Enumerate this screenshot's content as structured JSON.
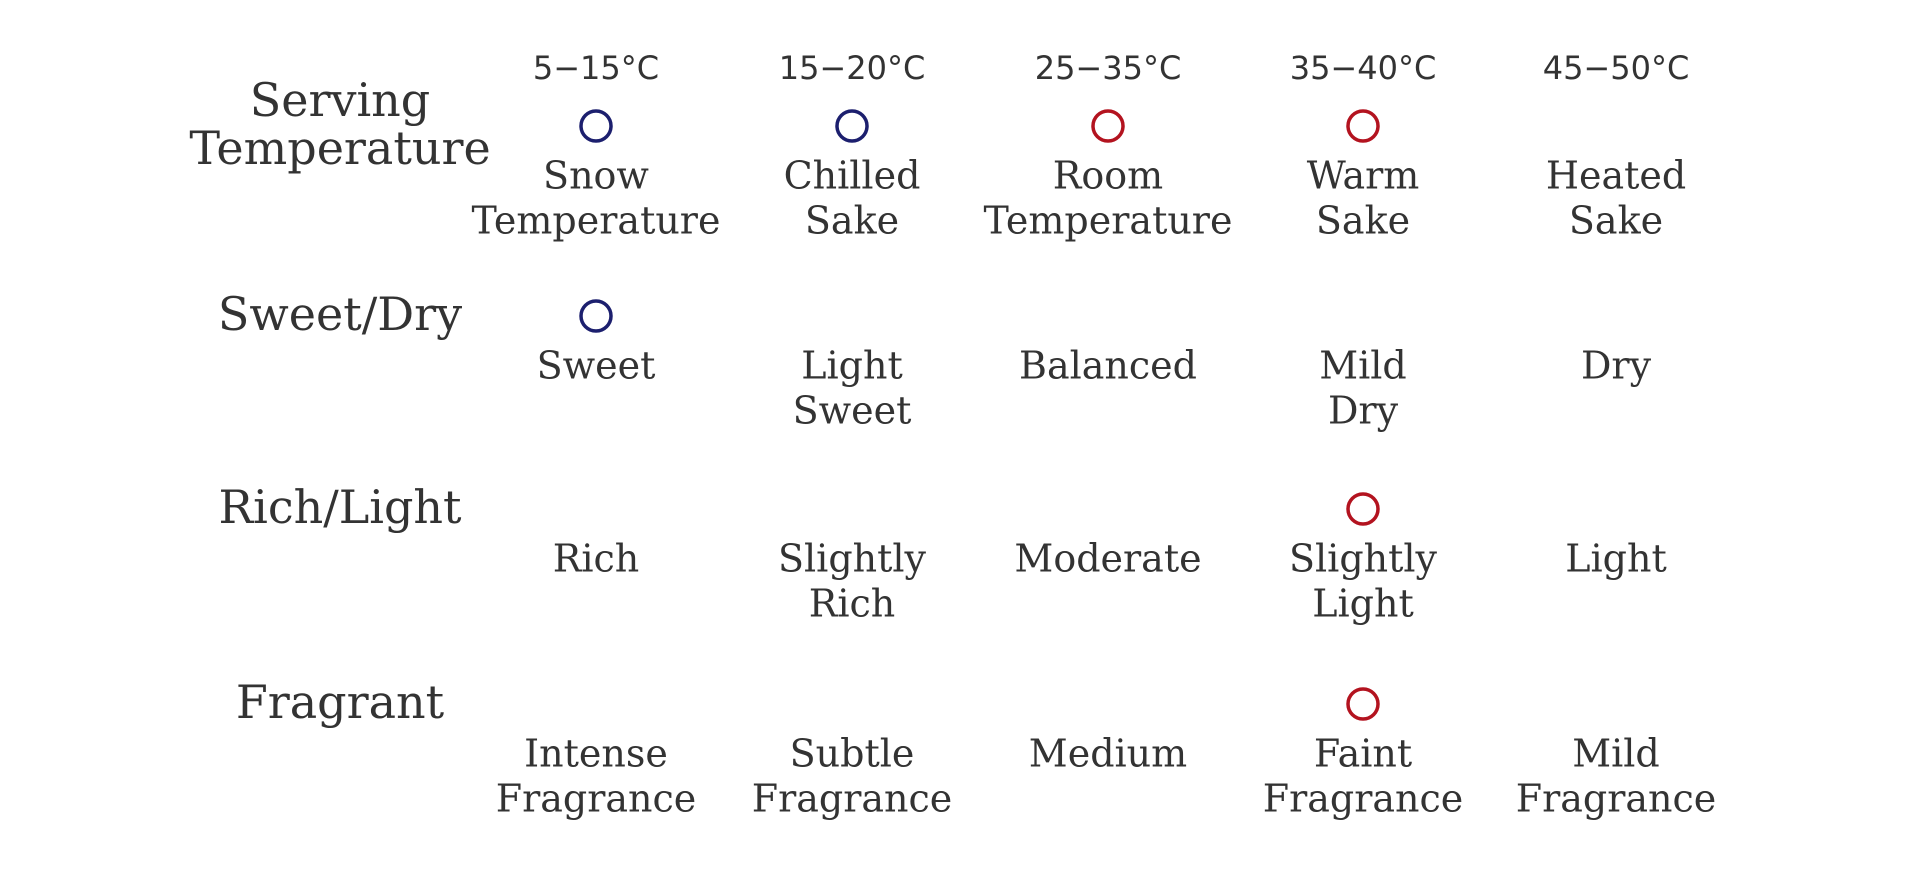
{
  "rows": [
    {
      "label": [
        "Serving",
        "Temperature"
      ],
      "items": [
        {
          "temp": "5−15°C",
          "label": [
            "Snow",
            "Temperature"
          ],
          "marked": true
        },
        {
          "temp": "15−20°C",
          "label": [
            "Chilled",
            "Sake"
          ],
          "marked": true
        },
        {
          "temp": "25−35°C",
          "label": [
            "Room",
            "Temperature"
          ],
          "marked": true
        },
        {
          "temp": "35−40°C",
          "label": [
            "Warm",
            "Sake"
          ],
          "marked": true
        },
        {
          "temp": "45−50°C",
          "label": [
            "Heated",
            "Sake"
          ],
          "marked": false
        }
      ]
    },
    {
      "label": [
        "Sweet/Dry"
      ],
      "items": [
        {
          "label": [
            "Sweet"
          ],
          "marked": true
        },
        {
          "label": [
            "Light",
            "Sweet"
          ],
          "marked": false
        },
        {
          "label": [
            "Balanced"
          ],
          "marked": false
        },
        {
          "label": [
            "Mild",
            "Dry"
          ],
          "marked": false
        },
        {
          "label": [
            "Dry"
          ],
          "marked": false
        }
      ]
    },
    {
      "label": [
        "Rich/Light"
      ],
      "items": [
        {
          "label": [
            "Rich"
          ],
          "marked": false
        },
        {
          "label": [
            "Slightly",
            "Rich"
          ],
          "marked": false
        },
        {
          "label": [
            "Moderate"
          ],
          "marked": false
        },
        {
          "label": [
            "Slightly",
            "Light"
          ],
          "marked": true
        },
        {
          "label": [
            "Light"
          ],
          "marked": false
        }
      ]
    },
    {
      "label": [
        "Fragrant"
      ],
      "items": [
        {
          "label": [
            "Intense",
            "Fragrance"
          ],
          "marked": false
        },
        {
          "label": [
            "Subtle",
            "Fragrance"
          ],
          "marked": false
        },
        {
          "label": [
            "Medium"
          ],
          "marked": false
        },
        {
          "label": [
            "Faint",
            "Fragrance"
          ],
          "marked": true
        },
        {
          "label": [
            "Mild",
            "Fragrance"
          ],
          "marked": false
        }
      ]
    }
  ]
}
